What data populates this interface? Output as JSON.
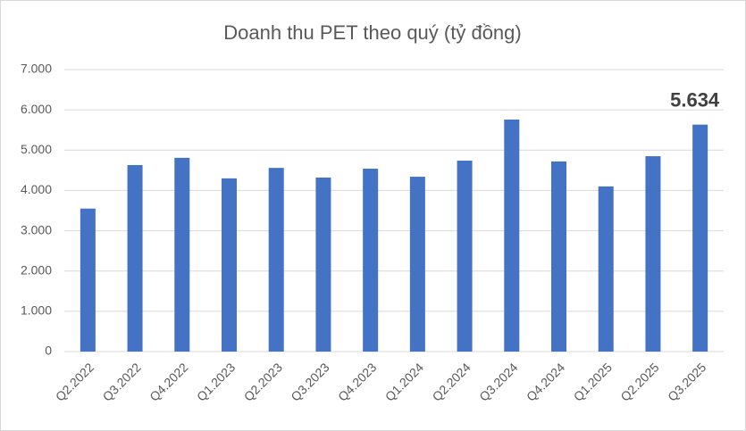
{
  "chart_data": {
    "type": "bar",
    "title": "Doanh thu PET theo quý (tỷ đồng)",
    "categories": [
      "Q2.2022",
      "Q3.2022",
      "Q4.2022",
      "Q1.2023",
      "Q2.2023",
      "Q3.2023",
      "Q4.2023",
      "Q1.2024",
      "Q2.2024",
      "Q3.2024",
      "Q4.2024",
      "Q1.2025",
      "Q2.2025",
      "Q3.2025"
    ],
    "values": [
      3550,
      4630,
      4810,
      4300,
      4560,
      4320,
      4540,
      4340,
      4740,
      5760,
      4720,
      4100,
      4850,
      5634
    ],
    "value_labels": [
      null,
      null,
      null,
      null,
      null,
      null,
      null,
      null,
      null,
      null,
      null,
      null,
      null,
      "5.634"
    ],
    "color": "#4472c4",
    "ylim": [
      0,
      7000
    ],
    "yticks": [
      0,
      {
        "value": 1000,
        "label": "1.000"
      },
      {
        "value": 2000,
        "label": "2.000"
      },
      {
        "value": 3000,
        "label": "3.000"
      },
      {
        "value": 4000,
        "label": "4.000"
      },
      {
        "value": 5000,
        "label": "5.000"
      },
      {
        "value": 6000,
        "label": "6.000"
      },
      {
        "value": 7000,
        "label": "7.000"
      }
    ],
    "grid": true
  }
}
